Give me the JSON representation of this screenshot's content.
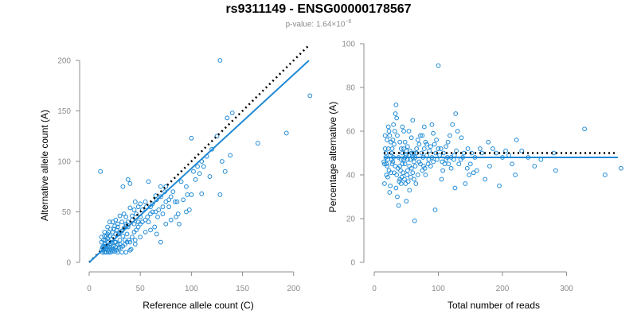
{
  "title": "rs9311149 - ENSG00000178567",
  "subtitle": {
    "prefix": "p-value: 1.64×10",
    "exponent": "−6"
  },
  "colors": {
    "points": "#1f8ad6",
    "fit": "#1f8ad6",
    "reference": "#000000",
    "axis": "#8c8c8c"
  },
  "chart_data": [
    {
      "type": "scatter",
      "xlabel": "Reference allele count (C)",
      "ylabel": "Alternative allele count (A)",
      "xlim": [
        0,
        215
      ],
      "ylim": [
        0,
        200
      ],
      "xticks": [
        0,
        50,
        100,
        150,
        200
      ],
      "yticks": [
        0,
        50,
        100,
        150,
        200
      ],
      "fit_line": {
        "slope": 0.93,
        "intercept": 0
      },
      "reference_line": {
        "slope": 1,
        "intercept": 0
      },
      "points": [
        [
          11,
          90
        ],
        [
          128,
          200
        ],
        [
          216,
          165
        ],
        [
          193,
          128
        ],
        [
          165,
          118
        ],
        [
          135,
          143
        ],
        [
          125,
          125
        ],
        [
          120,
          112
        ],
        [
          130,
          100
        ],
        [
          133,
          90
        ],
        [
          138,
          106
        ],
        [
          110,
          100
        ],
        [
          100,
          123
        ],
        [
          112,
          95
        ],
        [
          108,
          88
        ],
        [
          104,
          82
        ],
        [
          128,
          67
        ],
        [
          110,
          68
        ],
        [
          100,
          67
        ],
        [
          96,
          67
        ],
        [
          90,
          80
        ],
        [
          82,
          70
        ],
        [
          87,
          48
        ],
        [
          88,
          38
        ],
        [
          75,
          75
        ],
        [
          70,
          75
        ],
        [
          65,
          66
        ],
        [
          58,
          80
        ],
        [
          60,
          55
        ],
        [
          55,
          60
        ],
        [
          50,
          58
        ],
        [
          48,
          55
        ],
        [
          45,
          60
        ],
        [
          44,
          52
        ],
        [
          40,
          54
        ],
        [
          38,
          82
        ],
        [
          40,
          78
        ],
        [
          33,
          75
        ],
        [
          36,
          45
        ],
        [
          42,
          42
        ],
        [
          50,
          45
        ],
        [
          58,
          40
        ],
        [
          64,
          35
        ],
        [
          66,
          28
        ],
        [
          70,
          20
        ],
        [
          45,
          18
        ],
        [
          41,
          13
        ],
        [
          37,
          28
        ],
        [
          33,
          26
        ],
        [
          30,
          30
        ],
        [
          28,
          35
        ],
        [
          25,
          36
        ],
        [
          23,
          40
        ],
        [
          20,
          40
        ],
        [
          18,
          35
        ],
        [
          15,
          30
        ],
        [
          12,
          25
        ],
        [
          12,
          20
        ],
        [
          14,
          16
        ],
        [
          16,
          22
        ],
        [
          18,
          20
        ],
        [
          22,
          20
        ],
        [
          24,
          25
        ],
        [
          26,
          28
        ],
        [
          30,
          22
        ],
        [
          28,
          18
        ],
        [
          26,
          15
        ],
        [
          24,
          13
        ],
        [
          22,
          15
        ],
        [
          20,
          12
        ],
        [
          18,
          12
        ],
        [
          16,
          13
        ],
        [
          14,
          12
        ],
        [
          13,
          15
        ],
        [
          13,
          10
        ],
        [
          15,
          10
        ],
        [
          17,
          10
        ],
        [
          19,
          10
        ],
        [
          21,
          10
        ],
        [
          23,
          11
        ],
        [
          25,
          11
        ],
        [
          27,
          12
        ],
        [
          29,
          14
        ],
        [
          31,
          15
        ],
        [
          33,
          16
        ],
        [
          35,
          18
        ],
        [
          37,
          20
        ],
        [
          39,
          22
        ],
        [
          42,
          25
        ],
        [
          44,
          30
        ],
        [
          46,
          32
        ],
        [
          48,
          35
        ],
        [
          50,
          38
        ],
        [
          52,
          40
        ],
        [
          55,
          42
        ],
        [
          57,
          45
        ],
        [
          60,
          48
        ],
        [
          62,
          50
        ],
        [
          65,
          50
        ],
        [
          68,
          52
        ],
        [
          72,
          55
        ],
        [
          75,
          60
        ],
        [
          78,
          62
        ],
        [
          80,
          65
        ],
        [
          84,
          60
        ],
        [
          92,
          62
        ],
        [
          98,
          52
        ],
        [
          95,
          50
        ],
        [
          85,
          45
        ],
        [
          80,
          42
        ],
        [
          75,
          38
        ],
        [
          78,
          55
        ],
        [
          72,
          48
        ],
        [
          67,
          45
        ],
        [
          60,
          32
        ],
        [
          55,
          30
        ],
        [
          50,
          25
        ],
        [
          45,
          22
        ],
        [
          40,
          20
        ],
        [
          35,
          22
        ],
        [
          30,
          18
        ],
        [
          25,
          20
        ],
        [
          22,
          23
        ],
        [
          20,
          26
        ],
        [
          18,
          28
        ],
        [
          16,
          18
        ],
        [
          15,
          15
        ],
        [
          14,
          22
        ],
        [
          17,
          26
        ],
        [
          19,
          30
        ],
        [
          21,
          33
        ],
        [
          23,
          30
        ],
        [
          27,
          32
        ],
        [
          29,
          28
        ],
        [
          32,
          31
        ],
        [
          34,
          34
        ],
        [
          36,
          38
        ],
        [
          38,
          40
        ],
        [
          42,
          46
        ],
        [
          46,
          48
        ],
        [
          52,
          52
        ],
        [
          56,
          55
        ],
        [
          62,
          58
        ],
        [
          66,
          62
        ],
        [
          70,
          65
        ],
        [
          74,
          70
        ],
        [
          86,
          60
        ],
        [
          95,
          75
        ],
        [
          102,
          90
        ],
        [
          106,
          95
        ],
        [
          115,
          105
        ],
        [
          118,
          85
        ],
        [
          140,
          148
        ],
        [
          20,
          15
        ],
        [
          17,
          14
        ],
        [
          22,
          13
        ],
        [
          28,
          10
        ],
        [
          32,
          10
        ],
        [
          36,
          10
        ],
        [
          40,
          12
        ],
        [
          12,
          12
        ],
        [
          14,
          14
        ],
        [
          16,
          16
        ],
        [
          18,
          16
        ],
        [
          20,
          18
        ],
        [
          24,
          16
        ],
        [
          26,
          20
        ],
        [
          18,
          24
        ],
        [
          15,
          26
        ],
        [
          24,
          33
        ],
        [
          28,
          38
        ],
        [
          32,
          40
        ],
        [
          36,
          36
        ],
        [
          38,
          35
        ],
        [
          48,
          40
        ],
        [
          44,
          38
        ],
        [
          34,
          48
        ],
        [
          30,
          46
        ],
        [
          26,
          42
        ]
      ]
    },
    {
      "type": "scatter",
      "xlabel": "Total number of reads",
      "ylabel": "Percentage alternative (A)",
      "xlim": [
        0,
        390
      ],
      "ylim": [
        0,
        100
      ],
      "xticks": [
        0,
        100,
        200,
        300
      ],
      "yticks": [
        0,
        20,
        40,
        60,
        80,
        100
      ],
      "fit_line": {
        "y": 48
      },
      "reference_line": {
        "y": 50
      },
      "points": [
        [
          100,
          90
        ],
        [
          328,
          61
        ],
        [
          385,
          43
        ],
        [
          360,
          40
        ],
        [
          283,
          42
        ],
        [
          280,
          50
        ],
        [
          222,
          56
        ],
        [
          220,
          40
        ],
        [
          230,
          51
        ],
        [
          200,
          48
        ],
        [
          190,
          50
        ],
        [
          180,
          44
        ],
        [
          173,
          38
        ],
        [
          178,
          55
        ],
        [
          165,
          52
        ],
        [
          157,
          48
        ],
        [
          155,
          41
        ],
        [
          148,
          40
        ],
        [
          140,
          50
        ],
        [
          135,
          47
        ],
        [
          130,
          60
        ],
        [
          127,
          68
        ],
        [
          122,
          63
        ],
        [
          118,
          58
        ],
        [
          115,
          55
        ],
        [
          110,
          45
        ],
        [
          107,
          42
        ],
        [
          105,
          38
        ],
        [
          100,
          52
        ],
        [
          97,
          56
        ],
        [
          95,
          24
        ],
        [
          92,
          59
        ],
        [
          90,
          63
        ],
        [
          88,
          44
        ],
        [
          85,
          47
        ],
        [
          82,
          54
        ],
        [
          80,
          40
        ],
        [
          78,
          62
        ],
        [
          75,
          58
        ],
        [
          72,
          45
        ],
        [
          70,
          54
        ],
        [
          68,
          40
        ],
        [
          65,
          36
        ],
        [
          62,
          50
        ],
        [
          60,
          65
        ],
        [
          58,
          57
        ],
        [
          55,
          44
        ],
        [
          52,
          42
        ],
        [
          50,
          28
        ],
        [
          48,
          45
        ],
        [
          46,
          52
        ],
        [
          44,
          50
        ],
        [
          42,
          47
        ],
        [
          40,
          55
        ],
        [
          38,
          48
        ],
        [
          36,
          58
        ],
        [
          35,
          66
        ],
        [
          34,
          72
        ],
        [
          33,
          68
        ],
        [
          32,
          60
        ],
        [
          31,
          54
        ],
        [
          30,
          63
        ],
        [
          29,
          56
        ],
        [
          28,
          45
        ],
        [
          27,
          50
        ],
        [
          26,
          41
        ],
        [
          25,
          35
        ],
        [
          24,
          32
        ],
        [
          23,
          60
        ],
        [
          22,
          52
        ],
        [
          21,
          47
        ],
        [
          20,
          44
        ],
        [
          19,
          40
        ],
        [
          18,
          50
        ],
        [
          17,
          58
        ],
        [
          16,
          36
        ],
        [
          15,
          46
        ],
        [
          34,
          34
        ],
        [
          36,
          30
        ],
        [
          38,
          26
        ],
        [
          40,
          38
        ],
        [
          42,
          36
        ],
        [
          44,
          62
        ],
        [
          46,
          60
        ],
        [
          48,
          55
        ],
        [
          50,
          49
        ],
        [
          52,
          53
        ],
        [
          54,
          60
        ],
        [
          56,
          47
        ],
        [
          58,
          43
        ],
        [
          60,
          41
        ],
        [
          62,
          38
        ],
        [
          64,
          48
        ],
        [
          66,
          52
        ],
        [
          68,
          56
        ],
        [
          70,
          46
        ],
        [
          72,
          58
        ],
        [
          74,
          50
        ],
        [
          76,
          48
        ],
        [
          78,
          52
        ],
        [
          80,
          55
        ],
        [
          82,
          49
        ],
        [
          84,
          45
        ],
        [
          86,
          51
        ],
        [
          88,
          53
        ],
        [
          90,
          48
        ],
        [
          92,
          46
        ],
        [
          94,
          54
        ],
        [
          96,
          50
        ],
        [
          98,
          47
        ],
        [
          102,
          49
        ],
        [
          104,
          52
        ],
        [
          106,
          46
        ],
        [
          108,
          50
        ],
        [
          112,
          53
        ],
        [
          114,
          48
        ],
        [
          116,
          45
        ],
        [
          120,
          43
        ],
        [
          124,
          47
        ],
        [
          126,
          34
        ],
        [
          128,
          51
        ],
        [
          132,
          45
        ],
        [
          136,
          57
        ],
        [
          138,
          48
        ],
        [
          142,
          36
        ],
        [
          146,
          52
        ],
        [
          150,
          45
        ],
        [
          152,
          50
        ],
        [
          160,
          42
        ],
        [
          168,
          50
        ],
        [
          185,
          52
        ],
        [
          195,
          35
        ],
        [
          205,
          51
        ],
        [
          210,
          49
        ],
        [
          215,
          45
        ],
        [
          240,
          48
        ],
        [
          250,
          44
        ],
        [
          260,
          47
        ],
        [
          40,
          44
        ],
        [
          42,
          52
        ],
        [
          44,
          45
        ],
        [
          30,
          48
        ],
        [
          28,
          52
        ],
        [
          26,
          55
        ],
        [
          24,
          58
        ],
        [
          22,
          62
        ],
        [
          20,
          56
        ],
        [
          18,
          48
        ],
        [
          17,
          52
        ],
        [
          16,
          45
        ],
        [
          35,
          40
        ],
        [
          37,
          43
        ],
        [
          39,
          37
        ],
        [
          41,
          42
        ],
        [
          43,
          39
        ],
        [
          45,
          41
        ],
        [
          47,
          38
        ],
        [
          49,
          36
        ],
        [
          51,
          40
        ],
        [
          53,
          37
        ],
        [
          55,
          33
        ],
        [
          57,
          39
        ],
        [
          33,
          44
        ],
        [
          31,
          41
        ],
        [
          29,
          46
        ],
        [
          27,
          47
        ],
        [
          25,
          49
        ],
        [
          23,
          42
        ],
        [
          21,
          39
        ],
        [
          19,
          45
        ],
        [
          66,
          50
        ],
        [
          64,
          44
        ],
        [
          62,
          46
        ],
        [
          75,
          42
        ],
        [
          77,
          44
        ],
        [
          79,
          43
        ],
        [
          112,
          47
        ],
        [
          125,
          49
        ],
        [
          145,
          43
        ],
        [
          120,
          48
        ],
        [
          63,
          19
        ],
        [
          60,
          48
        ],
        [
          58,
          50
        ],
        [
          56,
          51
        ],
        [
          54,
          49
        ],
        [
          46,
          47
        ],
        [
          48,
          48
        ],
        [
          50,
          51
        ],
        [
          52,
          47
        ]
      ]
    }
  ]
}
